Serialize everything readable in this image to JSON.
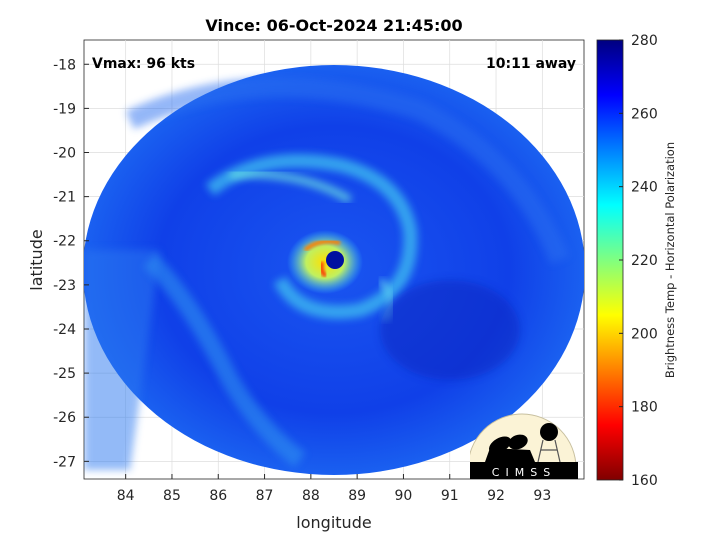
{
  "chart_data": {
    "type": "heatmap",
    "title": "Vince: 06-Oct-2024 21:45:00",
    "xlabel": "longitude",
    "ylabel": "latitude",
    "xlim": [
      83.1,
      93.9
    ],
    "ylim": [
      -27.4,
      -17.45
    ],
    "xticks": [
      "84",
      "85",
      "86",
      "87",
      "88",
      "89",
      "90",
      "91",
      "92",
      "93"
    ],
    "yticks": [
      "-18",
      "-19",
      "-20",
      "-21",
      "-22",
      "-23",
      "-24",
      "-25",
      "-26",
      "-27"
    ],
    "grid": true,
    "annotations": {
      "vmax": "Vmax: 96 kts",
      "away": "10:11 away"
    },
    "colorbar": {
      "label": "Brightness Temp - Horizontal Polarization",
      "range": [
        160,
        280
      ],
      "ticks": [
        "160",
        "180",
        "200",
        "220",
        "240",
        "260",
        "280"
      ],
      "colormap": [
        "#800000",
        "#ff0000",
        "#ff8000",
        "#ffff00",
        "#80ff80",
        "#00ffff",
        "#0080ff",
        "#0000ff",
        "#000080"
      ]
    },
    "storm_center": {
      "lon": 88.5,
      "lat": -22.5
    },
    "colors": {
      "background_scene": "#1040e0",
      "eye_wall": "#ffe000",
      "eye": "#0010a0"
    }
  },
  "logo": {
    "text": "CIMSS"
  }
}
